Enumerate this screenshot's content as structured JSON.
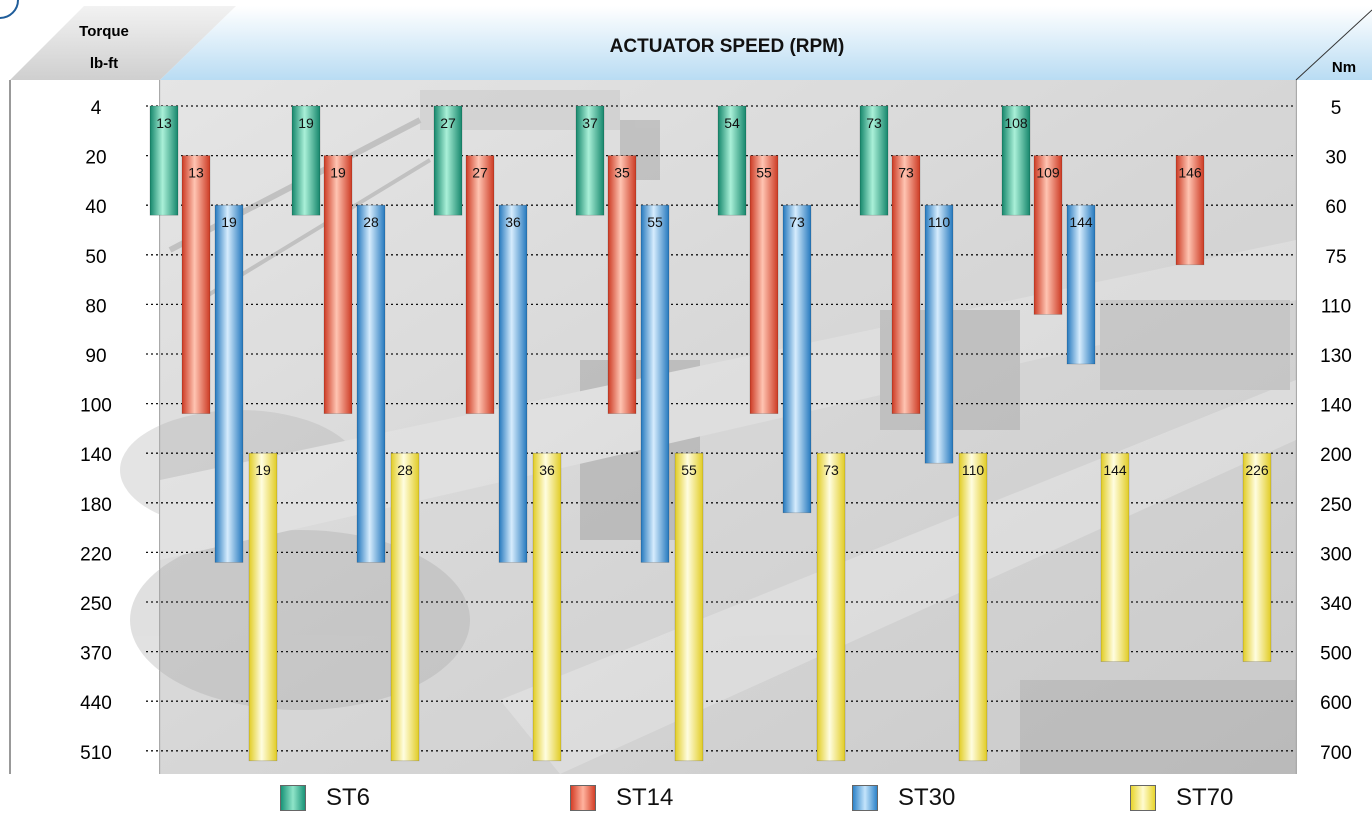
{
  "chart_data": {
    "type": "bar",
    "title": "ACTUATOR SPEED (RPM)",
    "left_axis": {
      "label_line1": "Torque",
      "label_line2": "lb-ft",
      "ticks": [
        "4",
        "20",
        "40",
        "50",
        "80",
        "90",
        "100",
        "140",
        "180",
        "220",
        "250",
        "370",
        "440",
        "510"
      ]
    },
    "right_axis": {
      "label": "Nm",
      "ticks": [
        "5",
        "30",
        "60",
        "75",
        "110",
        "130",
        "140",
        "200",
        "250",
        "300",
        "340",
        "500",
        "600",
        "700"
      ]
    },
    "grid": true,
    "legend_placement": "bottom",
    "series": [
      {
        "name": "ST6",
        "color": "#2fb394",
        "bars": [
          {
            "group": 0,
            "from": "4",
            "to": "40",
            "rpm": "13"
          },
          {
            "group": 1,
            "from": "4",
            "to": "40",
            "rpm": "19"
          },
          {
            "group": 2,
            "from": "4",
            "to": "40",
            "rpm": "27"
          },
          {
            "group": 3,
            "from": "4",
            "to": "40",
            "rpm": "37"
          },
          {
            "group": 4,
            "from": "4",
            "to": "40",
            "rpm": "54"
          },
          {
            "group": 5,
            "from": "4",
            "to": "40",
            "rpm": "73"
          },
          {
            "group": 6,
            "from": "4",
            "to": "40",
            "rpm": "108"
          }
        ]
      },
      {
        "name": "ST14",
        "color": "#ec5a41",
        "bars": [
          {
            "group": 0,
            "from": "20",
            "to": "100",
            "rpm": "13"
          },
          {
            "group": 1,
            "from": "20",
            "to": "100",
            "rpm": "19"
          },
          {
            "group": 2,
            "from": "20",
            "to": "100",
            "rpm": "27"
          },
          {
            "group": 3,
            "from": "20",
            "to": "100",
            "rpm": "35"
          },
          {
            "group": 4,
            "from": "20",
            "to": "100",
            "rpm": "55"
          },
          {
            "group": 5,
            "from": "20",
            "to": "100",
            "rpm": "73"
          },
          {
            "group": 6,
            "from": "20",
            "to": "80",
            "rpm": "109"
          },
          {
            "group": 7,
            "from": "20",
            "to": "50",
            "rpm": "146"
          }
        ]
      },
      {
        "name": "ST30",
        "color": "#4a9fe0",
        "bars": [
          {
            "group": 0,
            "from": "40",
            "to": "220",
            "rpm": "19"
          },
          {
            "group": 1,
            "from": "40",
            "to": "220",
            "rpm": "28"
          },
          {
            "group": 2,
            "from": "40",
            "to": "220",
            "rpm": "36"
          },
          {
            "group": 3,
            "from": "40",
            "to": "220",
            "rpm": "55"
          },
          {
            "group": 4,
            "from": "40",
            "to": "180",
            "rpm": "73"
          },
          {
            "group": 5,
            "from": "40",
            "to": "140",
            "rpm": "110"
          },
          {
            "group": 6,
            "from": "40",
            "to": "90",
            "rpm": "144"
          }
        ]
      },
      {
        "name": "ST70",
        "color": "#f7ec4e",
        "bars": [
          {
            "group": 0,
            "from": "140",
            "to": "510",
            "rpm": "19"
          },
          {
            "group": 1,
            "from": "140",
            "to": "510",
            "rpm": "28"
          },
          {
            "group": 2,
            "from": "140",
            "to": "510",
            "rpm": "36"
          },
          {
            "group": 3,
            "from": "140",
            "to": "510",
            "rpm": "55"
          },
          {
            "group": 4,
            "from": "140",
            "to": "510",
            "rpm": "73"
          },
          {
            "group": 5,
            "from": "140",
            "to": "510",
            "rpm": "110"
          },
          {
            "group": 6,
            "from": "140",
            "to": "370",
            "rpm": "144"
          },
          {
            "group": 7,
            "from": "140",
            "to": "370",
            "rpm": "226"
          }
        ]
      }
    ]
  }
}
